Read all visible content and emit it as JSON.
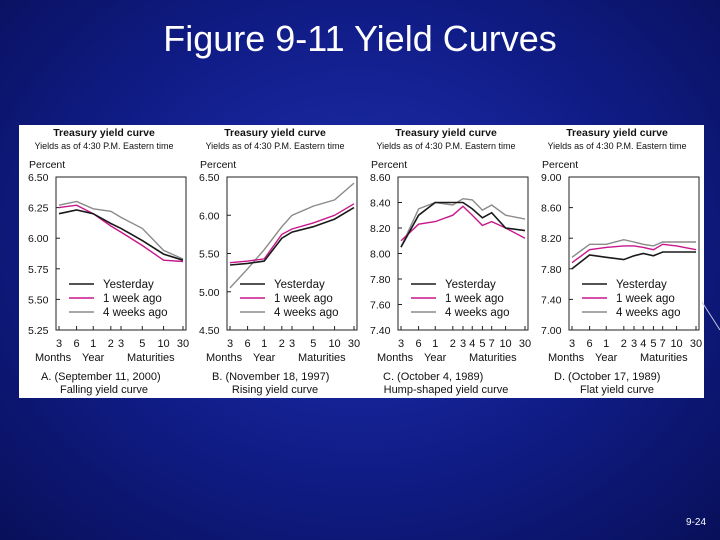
{
  "slide": {
    "title": "Figure 9-11 Yield Curves",
    "page_number": "9-24"
  },
  "colors": {
    "yesterday": "#1a1a1a",
    "one_week_ago": "#c8168c",
    "four_weeks_ago": "#8a8a8a",
    "background": "#111e8c"
  },
  "chart_data": [
    {
      "type": "line",
      "title": "Treasury yield curve",
      "subtitle": "Yields as of 4:30 P.M. Eastern time",
      "ylabel": "Percent",
      "ylim": [
        5.25,
        6.5
      ],
      "yticks": [
        "6.50",
        "6.25",
        "6.00",
        "5.75",
        "5.50",
        "5.25"
      ],
      "xticks": [
        "3",
        "6",
        "1",
        "2",
        "3",
        "5",
        "10",
        "30"
      ],
      "xgroups": [
        "Months",
        "Year",
        "Maturities"
      ],
      "caption_line1": "A. (September 11, 2000)",
      "caption_line2": "Falling yield curve",
      "legend": [
        "Yesterday",
        "1 week ago",
        "4 weeks ago"
      ],
      "series": [
        {
          "name": "Yesterday",
          "values": [
            6.2,
            6.23,
            6.2,
            6.12,
            6.08,
            5.98,
            5.87,
            5.82
          ]
        },
        {
          "name": "1 week ago",
          "values": [
            6.25,
            6.27,
            6.2,
            6.1,
            6.05,
            5.94,
            5.82,
            5.81
          ]
        },
        {
          "name": "4 weeks ago",
          "values": [
            6.27,
            6.3,
            6.24,
            6.22,
            6.17,
            6.08,
            5.9,
            5.83
          ]
        }
      ]
    },
    {
      "type": "line",
      "title": "Treasury yield curve",
      "subtitle": "Yields as of 4:30 P.M. Eastern time",
      "ylabel": "Percent",
      "ylim": [
        4.5,
        6.5
      ],
      "yticks": [
        "6.50",
        "6.00",
        "5.50",
        "5.00",
        "4.50"
      ],
      "xticks": [
        "3",
        "6",
        "1",
        "2",
        "3",
        "5",
        "10",
        "30"
      ],
      "xgroups": [
        "Months",
        "Year",
        "Maturities"
      ],
      "caption_line1": "B. (November 18, 1997)",
      "caption_line2": "Rising yield curve",
      "legend": [
        "Yesterday",
        "1 week ago",
        "4 weeks ago"
      ],
      "series": [
        {
          "name": "Yesterday",
          "values": [
            5.35,
            5.37,
            5.4,
            5.7,
            5.78,
            5.85,
            5.95,
            6.1
          ]
        },
        {
          "name": "1 week ago",
          "values": [
            5.38,
            5.4,
            5.43,
            5.75,
            5.82,
            5.9,
            6.0,
            6.15
          ]
        },
        {
          "name": "4 weeks ago",
          "values": [
            5.05,
            5.3,
            5.55,
            5.85,
            6.0,
            6.12,
            6.2,
            6.42
          ]
        }
      ]
    },
    {
      "type": "line",
      "title": "Treasury yield curve",
      "subtitle": "Yields as of 4:30 P.M. Eastern time",
      "ylabel": "Percent",
      "ylim": [
        7.4,
        8.6
      ],
      "yticks": [
        "8.60",
        "8.40",
        "8.20",
        "8.00",
        "7.80",
        "7.60",
        "7.40"
      ],
      "xticks": [
        "3",
        "6",
        "1",
        "2",
        "3",
        "4",
        "5",
        "7",
        "10",
        "30"
      ],
      "xgroups": [
        "Months",
        "Year",
        "Maturities"
      ],
      "caption_line1": "C. (October 4, 1989)",
      "caption_line2": "Hump-shaped yield curve",
      "legend": [
        "Yesterday",
        "1 week ago",
        "4 weeks ago"
      ],
      "series": [
        {
          "name": "Yesterday",
          "values": [
            8.05,
            8.3,
            8.4,
            8.4,
            8.4,
            8.35,
            8.28,
            8.32,
            8.2,
            8.18
          ]
        },
        {
          "name": "1 week ago",
          "values": [
            8.1,
            8.23,
            8.25,
            8.3,
            8.37,
            8.3,
            8.22,
            8.25,
            8.2,
            8.12
          ]
        },
        {
          "name": "4 weeks ago",
          "values": [
            8.05,
            8.35,
            8.4,
            8.38,
            8.43,
            8.42,
            8.34,
            8.38,
            8.3,
            8.27
          ]
        }
      ]
    },
    {
      "type": "line",
      "title": "Treasury yield curve",
      "subtitle": "Yields as of 4:30 P.M. Eastern time",
      "ylabel": "Percent",
      "ylim": [
        7.0,
        9.0
      ],
      "yticks": [
        "9.00",
        "8.60",
        "8.20",
        "7.80",
        "7.40",
        "7.00"
      ],
      "xticks": [
        "3",
        "6",
        "1",
        "2",
        "3",
        "4",
        "5",
        "7",
        "10",
        "30"
      ],
      "xgroups": [
        "Months",
        "Year",
        "Maturities"
      ],
      "caption_line1": "D. (October 17, 1989)",
      "caption_line2": "Flat yield curve",
      "legend": [
        "Yesterday",
        "1 week ago",
        "4 weeks ago"
      ],
      "series": [
        {
          "name": "Yesterday",
          "values": [
            7.8,
            7.98,
            7.95,
            7.92,
            7.97,
            8.0,
            7.97,
            8.02,
            8.02,
            8.02
          ]
        },
        {
          "name": "1 week ago",
          "values": [
            7.88,
            8.05,
            8.08,
            8.1,
            8.1,
            8.08,
            8.05,
            8.12,
            8.1,
            8.05
          ]
        },
        {
          "name": "4 weeks ago",
          "values": [
            7.95,
            8.12,
            8.12,
            8.18,
            8.15,
            8.12,
            8.1,
            8.15,
            8.15,
            8.15
          ]
        }
      ]
    }
  ]
}
